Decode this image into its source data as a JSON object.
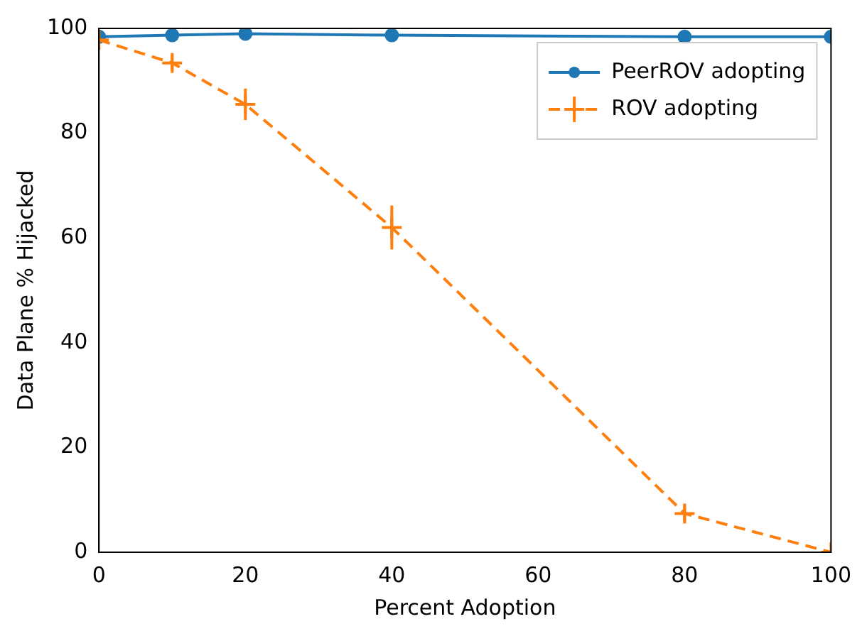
{
  "chart_data": {
    "type": "line",
    "xlabel": "Percent Adoption",
    "ylabel": "Data Plane % Hijacked",
    "x": [
      0,
      10,
      20,
      40,
      80,
      100
    ],
    "series": [
      {
        "name": "PeerROV adopting",
        "color": "#1f77b4",
        "marker": "circle",
        "line_style": "solid",
        "values": [
          98.4,
          98.7,
          99,
          98.7,
          98.4,
          98.4
        ]
      },
      {
        "name": "ROV adopting",
        "color": "#ff7f0e",
        "marker": "cross",
        "line_style": "dashed",
        "values": [
          97.8,
          93.4,
          85.5,
          62,
          7.4,
          0
        ],
        "errors": [
          null,
          1.5,
          3,
          4.2,
          1.5,
          null
        ]
      }
    ],
    "xlim": [
      0,
      100
    ],
    "ylim": [
      0,
      100
    ],
    "xticks": [
      0,
      20,
      40,
      60,
      80,
      100
    ],
    "yticks": [
      0,
      20,
      40,
      60,
      80,
      100
    ],
    "grid": false,
    "legend": "top right"
  }
}
